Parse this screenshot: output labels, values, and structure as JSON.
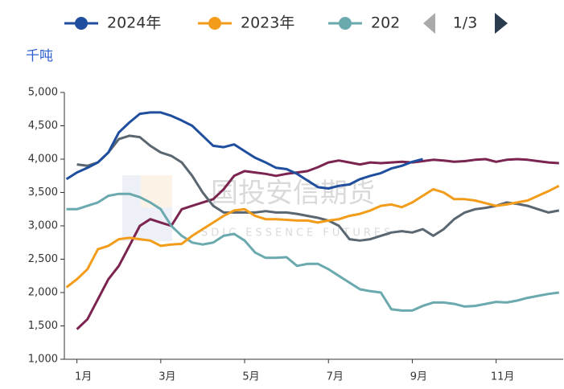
{
  "chart_data": {
    "type": "line",
    "y_unit": "千吨",
    "legend_page": "1/3",
    "watermark": {
      "text": "国投安信期货",
      "subtext": "SDIC ESSENCE FUTURES"
    },
    "xlim": [
      0.7,
      12.6
    ],
    "xticks": [
      {
        "value": 1,
        "label": "1月"
      },
      {
        "value": 3,
        "label": "3月"
      },
      {
        "value": 5,
        "label": "5月"
      },
      {
        "value": 7,
        "label": "7月"
      },
      {
        "value": 9,
        "label": "9月"
      },
      {
        "value": 11,
        "label": "11月"
      }
    ],
    "ylim": [
      1000,
      5000
    ],
    "yticks": [
      {
        "value": 1000,
        "label": "1,000"
      },
      {
        "value": 1500,
        "label": "1,500"
      },
      {
        "value": 2000,
        "label": "2,000"
      },
      {
        "value": 2500,
        "label": "2,500"
      },
      {
        "value": 3000,
        "label": "3,000"
      },
      {
        "value": 3500,
        "label": "3,500"
      },
      {
        "value": 4000,
        "label": "4,000"
      },
      {
        "value": 4500,
        "label": "4,500"
      },
      {
        "value": 5000,
        "label": "5,000"
      }
    ],
    "grid": false,
    "x": [
      0.75,
      1,
      1.25,
      1.5,
      1.75,
      2,
      2.25,
      2.5,
      2.75,
      3,
      3.25,
      3.5,
      3.75,
      4,
      4.25,
      4.5,
      4.75,
      5,
      5.25,
      5.5,
      5.75,
      6,
      6.25,
      6.5,
      6.75,
      7,
      7.25,
      7.5,
      7.75,
      8,
      8.25,
      8.5,
      8.75,
      9,
      9.25,
      9.5,
      9.75,
      10,
      10.25,
      10.5,
      10.75,
      11,
      11.25,
      11.5,
      11.75,
      12,
      12.25,
      12.5
    ],
    "series": [
      {
        "name": "2024年",
        "color": "#1f4e9e",
        "values": [
          3700,
          3800,
          3870,
          3950,
          4100,
          4400,
          4550,
          4680,
          4700,
          4700,
          4650,
          4580,
          4500,
          4350,
          4200,
          4180,
          4220,
          4120,
          4020,
          3950,
          3870,
          3850,
          3780,
          3680,
          3580,
          3560,
          3600,
          3620,
          3700,
          3750,
          3790,
          3860,
          3900,
          3960,
          4000,
          null,
          null,
          null,
          null,
          null,
          null,
          null,
          null,
          null,
          null,
          null,
          null,
          null
        ]
      },
      {
        "name": "2023年",
        "color": "#f29c1a",
        "values": [
          2080,
          2200,
          2350,
          2650,
          2700,
          2800,
          2820,
          2800,
          2780,
          2700,
          2720,
          2730,
          2850,
          2950,
          3050,
          3150,
          3230,
          3250,
          3150,
          3100,
          3100,
          3090,
          3080,
          3080,
          3050,
          3080,
          3100,
          3150,
          3180,
          3230,
          3300,
          3320,
          3280,
          3350,
          3450,
          3550,
          3500,
          3400,
          3400,
          3380,
          3340,
          3300,
          3320,
          3350,
          3380,
          3450,
          3520,
          3600
        ]
      },
      {
        "name": "202",
        "color": "#6aa9ae",
        "values": [
          3250,
          3250,
          3300,
          3350,
          3450,
          3480,
          3480,
          3430,
          3350,
          3250,
          3000,
          2850,
          2750,
          2720,
          2750,
          2850,
          2880,
          2780,
          2600,
          2520,
          2520,
          2530,
          2400,
          2430,
          2430,
          2350,
          2250,
          2150,
          2050,
          2020,
          2000,
          1750,
          1730,
          1730,
          1800,
          1850,
          1850,
          1830,
          1790,
          1800,
          1830,
          1860,
          1850,
          1880,
          1920,
          1950,
          1980,
          2000
        ]
      },
      {
        "color": "#7b2450",
        "values": [
          null,
          1450,
          1600,
          1900,
          2200,
          2400,
          2700,
          3000,
          3100,
          3050,
          3000,
          3250,
          3300,
          3350,
          3400,
          3550,
          3750,
          3820,
          3800,
          3780,
          3750,
          3780,
          3800,
          3820,
          3880,
          3950,
          3980,
          3950,
          3920,
          3950,
          3940,
          3950,
          3960,
          3950,
          3970,
          3990,
          3980,
          3960,
          3970,
          3990,
          4000,
          3960,
          3990,
          4000,
          3990,
          3970,
          3950,
          3940
        ]
      },
      {
        "color": "#5a6670",
        "values": [
          null,
          3920,
          3900,
          3950,
          4100,
          4300,
          4350,
          4330,
          4200,
          4100,
          4050,
          3950,
          3750,
          3500,
          3300,
          3200,
          3200,
          3200,
          3200,
          3220,
          3200,
          3200,
          3180,
          3150,
          3120,
          3080,
          3000,
          2800,
          2780,
          2800,
          2850,
          2900,
          2920,
          2900,
          2950,
          2850,
          2950,
          3100,
          3200,
          3250,
          3270,
          3300,
          3350,
          3330,
          3300,
          3250,
          3200,
          3230
        ]
      }
    ]
  }
}
